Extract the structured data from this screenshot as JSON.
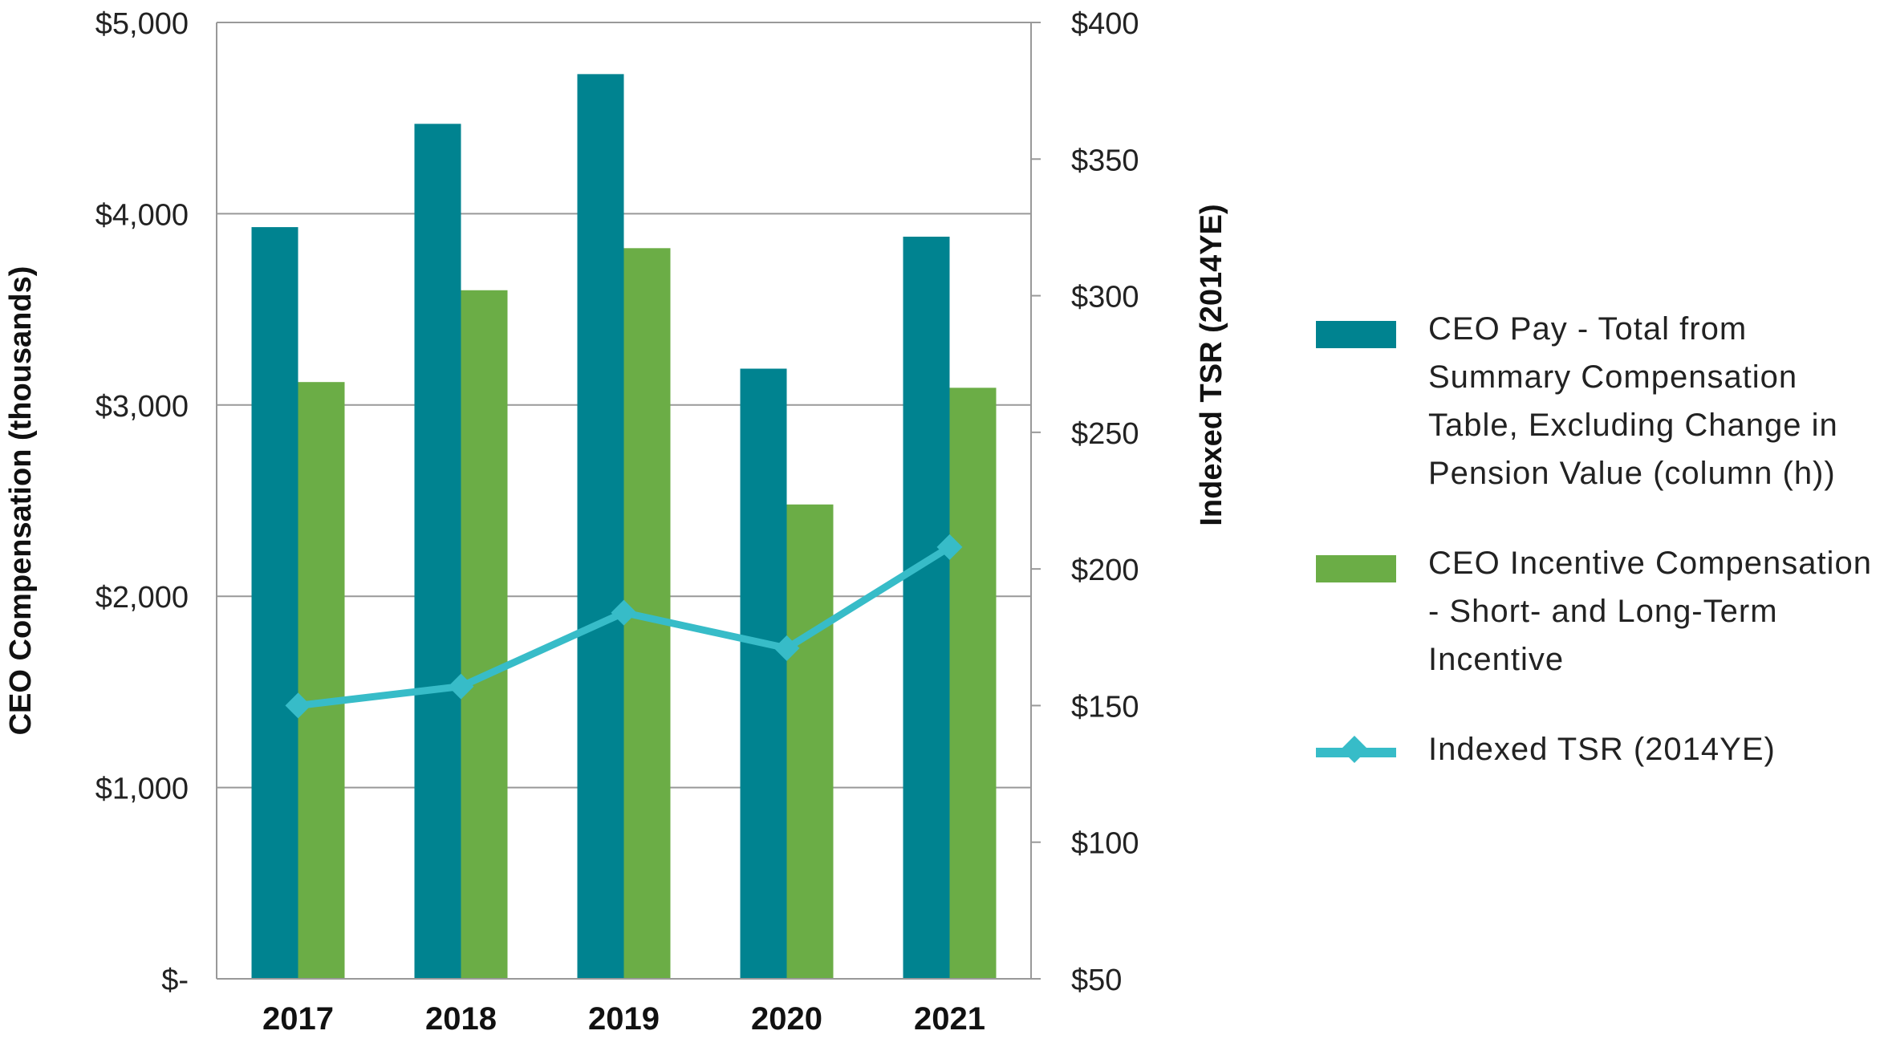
{
  "colors": {
    "pay": "#008390",
    "incentive": "#6BAD46",
    "tsr": "#37BCC8",
    "grid": "#999999"
  },
  "chart_data": {
    "type": "bar",
    "categories": [
      "2017",
      "2018",
      "2019",
      "2020",
      "2021"
    ],
    "series": [
      {
        "name": "CEO Pay - Total from Summary Compensation Table, Excluding Change in Pension Value (column (h))",
        "axis": "left",
        "kind": "bar",
        "values": [
          3930,
          4470,
          4730,
          3190,
          3880
        ]
      },
      {
        "name": "CEO Incentive Compensation - Short- and Long-Term Incentive",
        "axis": "left",
        "kind": "bar",
        "values": [
          3120,
          3600,
          3820,
          2480,
          3090
        ]
      },
      {
        "name": "Indexed TSR (2014YE)",
        "axis": "right",
        "kind": "line",
        "values": [
          150,
          157,
          184,
          171,
          208
        ]
      }
    ],
    "ylabel": "CEO Compensation (thousands)",
    "y2label": "Indexed TSR (2014YE)",
    "ylim": [
      0,
      5000
    ],
    "y2lim": [
      50,
      400
    ],
    "yticks": [
      0,
      1000,
      2000,
      3000,
      4000,
      5000
    ],
    "yticklabels": [
      "$-",
      "$1,000",
      "$2,000",
      "$3,000",
      "$4,000",
      "$5,000"
    ],
    "y2ticks": [
      50,
      100,
      150,
      200,
      250,
      300,
      350,
      400
    ],
    "y2ticklabels": [
      "$50",
      "$100",
      "$150",
      "$200",
      "$250",
      "$300",
      "$350",
      "$400"
    ],
    "legend_position": "right",
    "grid": true
  },
  "legend": {
    "pay": "CEO Pay - Total from\nSummary Compensation\nTable, Excluding Change in\nPension Value (column (h))",
    "incentive": "CEO Incentive Compensation\n- Short- and Long-Term\nIncentive",
    "tsr": "Indexed TSR (2014YE)"
  }
}
